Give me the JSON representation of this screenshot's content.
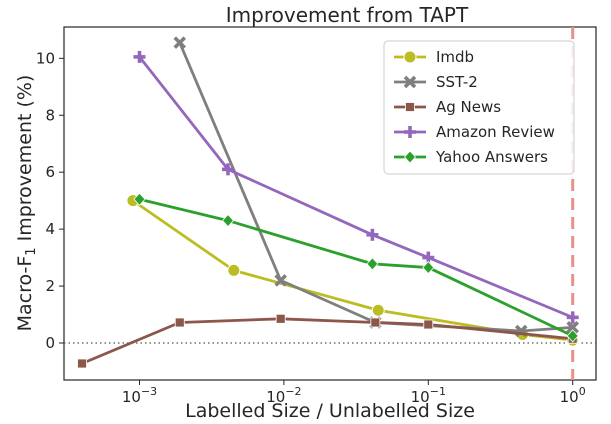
{
  "chart_data": {
    "type": "line",
    "title": "Improvement from TAPT",
    "xlabel": "Labelled Size / Unlabelled Size",
    "ylabel": "Macro-F",
    "ylabel_sub": "1",
    "ylabel_suffix": " Improvement (%)",
    "xscale": "log",
    "xlim": [
      0.0003,
      1.45
    ],
    "ylim": [
      -1.3,
      11.1
    ],
    "x_ticks": [
      {
        "value": 0.001,
        "base": "10",
        "exp": "−3"
      },
      {
        "value": 0.01,
        "base": "10",
        "exp": "−2"
      },
      {
        "value": 0.1,
        "base": "10",
        "exp": "−1"
      },
      {
        "value": 1,
        "base": "10",
        "exp": "0"
      }
    ],
    "y_ticks": [
      0,
      2,
      4,
      6,
      8,
      10
    ],
    "grid": false,
    "legend_position": "top-right",
    "reference_hline": 0,
    "reference_vline": 1,
    "series": [
      {
        "name": "Imdb",
        "color": "#bcbd22",
        "marker": "circle",
        "points": [
          [
            0.0009,
            5.0
          ],
          [
            0.0045,
            2.55
          ],
          [
            0.045,
            1.15
          ],
          [
            0.45,
            0.3
          ],
          [
            1.0,
            0.1
          ]
        ]
      },
      {
        "name": "SST-2",
        "color": "#7f7f7f",
        "marker": "x",
        "points": [
          [
            0.0019,
            10.55
          ],
          [
            0.0095,
            2.2
          ],
          [
            0.043,
            0.72
          ],
          [
            0.44,
            0.42
          ],
          [
            1.0,
            0.55
          ]
        ]
      },
      {
        "name": "Ag News",
        "color": "#8c564b",
        "marker": "square",
        "points": [
          [
            0.0004,
            -0.72
          ],
          [
            0.0019,
            0.72
          ],
          [
            0.0095,
            0.85
          ],
          [
            0.043,
            0.72
          ],
          [
            0.1,
            0.65
          ],
          [
            1.0,
            0.15
          ]
        ]
      },
      {
        "name": "Amazon Review",
        "color": "#9467bd",
        "marker": "plus",
        "points": [
          [
            0.001,
            10.05
          ],
          [
            0.0041,
            6.1
          ],
          [
            0.041,
            3.8
          ],
          [
            0.1,
            3.0
          ],
          [
            1.0,
            0.9
          ]
        ]
      },
      {
        "name": "Yahoo Answers",
        "color": "#2ca02c",
        "marker": "diamond",
        "points": [
          [
            0.001,
            5.05
          ],
          [
            0.0041,
            4.3
          ],
          [
            0.041,
            2.78
          ],
          [
            0.1,
            2.65
          ],
          [
            1.0,
            0.25
          ]
        ]
      }
    ]
  }
}
